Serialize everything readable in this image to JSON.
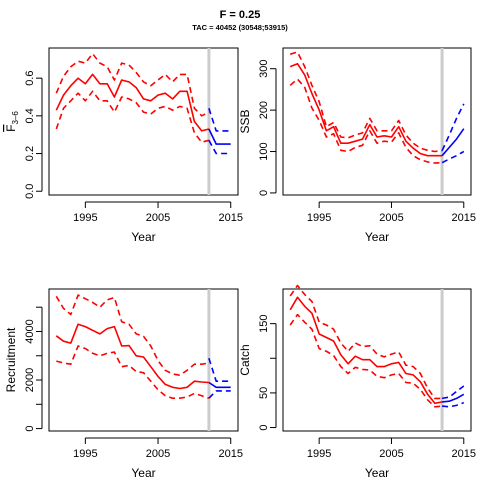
{
  "title": "F = 0.25",
  "subtitle": "TAC = 40452 (30548;53915)",
  "colors": {
    "historic": "#ff0000",
    "projection": "#0000ff",
    "marker": "#cccccc",
    "axis": "#000000"
  },
  "chart_data": [
    {
      "type": "line",
      "ylabel": "F̅3–6",
      "ylabel_parts": {
        "base": "F",
        "sub": "3–6"
      },
      "xlabel": "Year",
      "xlim": [
        1990,
        2016
      ],
      "ylim": [
        -0.02,
        0.76
      ],
      "xticks": [
        1995,
        2005,
        2015
      ],
      "yticks": [
        0.0,
        0.2,
        0.4,
        0.6
      ],
      "ytick_labels": [
        "0.0",
        "0.2",
        "0.4",
        "0.6"
      ],
      "marker_year": 2012,
      "historic": {
        "x": [
          1991,
          1992,
          1993,
          1994,
          1995,
          1996,
          1997,
          1998,
          1999,
          2000,
          2001,
          2002,
          2003,
          2004,
          2005,
          2006,
          2007,
          2008,
          2009,
          2010,
          2011,
          2012
        ],
        "mid": [
          0.43,
          0.51,
          0.56,
          0.6,
          0.57,
          0.62,
          0.57,
          0.57,
          0.5,
          0.59,
          0.58,
          0.55,
          0.49,
          0.48,
          0.51,
          0.52,
          0.49,
          0.53,
          0.53,
          0.37,
          0.32,
          0.33
        ],
        "upper": [
          0.52,
          0.61,
          0.66,
          0.69,
          0.68,
          0.73,
          0.68,
          0.66,
          0.59,
          0.68,
          0.67,
          0.63,
          0.58,
          0.56,
          0.59,
          0.62,
          0.58,
          0.62,
          0.62,
          0.44,
          0.4,
          0.42
        ],
        "lower": [
          0.33,
          0.44,
          0.48,
          0.52,
          0.48,
          0.53,
          0.48,
          0.48,
          0.42,
          0.5,
          0.49,
          0.47,
          0.42,
          0.41,
          0.44,
          0.45,
          0.43,
          0.45,
          0.44,
          0.31,
          0.26,
          0.27
        ]
      },
      "projection": {
        "x": [
          2012,
          2013,
          2014,
          2015
        ],
        "mid": [
          0.33,
          0.25,
          0.25,
          0.25
        ],
        "upper": [
          0.44,
          0.32,
          0.32,
          0.32
        ],
        "lower": [
          0.27,
          0.2,
          0.2,
          0.2
        ]
      }
    },
    {
      "type": "line",
      "ylabel": "SSB",
      "xlabel": "Year",
      "xlim": [
        1990,
        2016
      ],
      "ylim": [
        -5,
        350
      ],
      "xticks": [
        1995,
        2005,
        2015
      ],
      "yticks": [
        0,
        100,
        200,
        300
      ],
      "ytick_labels": [
        "0",
        "100",
        "200",
        "300"
      ],
      "marker_year": 2012,
      "historic": {
        "x": [
          1991,
          1992,
          1993,
          1994,
          1995,
          1996,
          1997,
          1998,
          1999,
          2000,
          2001,
          2002,
          2003,
          2004,
          2005,
          2006,
          2007,
          2008,
          2009,
          2010,
          2011,
          2012
        ],
        "mid": [
          305,
          312,
          285,
          240,
          200,
          150,
          160,
          120,
          120,
          125,
          130,
          165,
          135,
          138,
          135,
          160,
          125,
          108,
          95,
          90,
          90,
          90
        ],
        "upper": [
          335,
          340,
          305,
          260,
          220,
          160,
          170,
          135,
          133,
          140,
          145,
          180,
          150,
          150,
          150,
          175,
          140,
          120,
          108,
          103,
          100,
          102
        ],
        "lower": [
          260,
          275,
          255,
          205,
          175,
          135,
          143,
          103,
          100,
          110,
          115,
          150,
          120,
          125,
          123,
          145,
          110,
          90,
          80,
          75,
          72,
          73
        ]
      },
      "projection": {
        "x": [
          2012,
          2013,
          2014,
          2015
        ],
        "mid": [
          90,
          110,
          130,
          155
        ],
        "upper": [
          102,
          140,
          180,
          215
        ],
        "lower": [
          73,
          82,
          90,
          100
        ]
      }
    },
    {
      "type": "line",
      "ylabel": "Recruitment",
      "xlabel": "Year",
      "xlim": [
        1990,
        2016
      ],
      "ylim": [
        -100,
        5750
      ],
      "xticks": [
        1995,
        2005,
        2015
      ],
      "yticks": [
        0,
        1000,
        2000,
        3000,
        4000,
        5000
      ],
      "ytick_labels": [
        "0",
        "",
        "2000",
        "",
        "4000",
        ""
      ],
      "marker_year": 2012,
      "historic": {
        "x": [
          1991,
          1992,
          1993,
          1994,
          1995,
          1996,
          1997,
          1998,
          1999,
          2000,
          2001,
          2002,
          2003,
          2004,
          2005,
          2006,
          2007,
          2008,
          2009,
          2010,
          2011,
          2012
        ],
        "mid": [
          3820,
          3600,
          3520,
          4300,
          4200,
          4050,
          3900,
          4120,
          4200,
          3400,
          3420,
          3000,
          2950,
          2550,
          2150,
          1820,
          1700,
          1650,
          1700,
          1950,
          1920,
          1900
        ],
        "upper": [
          5450,
          4950,
          4700,
          5500,
          5350,
          5200,
          5000,
          5300,
          5400,
          4400,
          4300,
          3900,
          3800,
          3400,
          2800,
          2400,
          2250,
          2200,
          2400,
          2650,
          2650,
          2700
        ],
        "lower": [
          2780,
          2700,
          2650,
          3400,
          3300,
          3100,
          3000,
          3100,
          3150,
          2550,
          2600,
          2350,
          2300,
          1950,
          1600,
          1350,
          1250,
          1250,
          1300,
          1450,
          1350,
          1250
        ]
      },
      "projection": {
        "x": [
          2012,
          2013,
          2014,
          2015
        ],
        "mid": [
          1900,
          1700,
          1700,
          1700
        ],
        "upper": [
          2900,
          1950,
          1950,
          1950
        ],
        "lower": [
          1250,
          1550,
          1550,
          1550
        ]
      }
    },
    {
      "type": "line",
      "ylabel": "Catch",
      "xlabel": "Year",
      "xlim": [
        1990,
        2016
      ],
      "ylim": [
        -5,
        200
      ],
      "xticks": [
        1995,
        2005,
        2015
      ],
      "yticks": [
        0,
        50,
        100,
        150
      ],
      "ytick_labels": [
        "0",
        "50",
        "",
        "150"
      ],
      "marker_year": 2012,
      "historic": {
        "x": [
          1991,
          1992,
          1993,
          1994,
          1995,
          1996,
          1997,
          1998,
          1999,
          2000,
          2001,
          2002,
          2003,
          2004,
          2005,
          2006,
          2007,
          2008,
          2009,
          2010,
          2011,
          2012
        ],
        "mid": [
          170,
          188,
          175,
          165,
          135,
          130,
          125,
          105,
          92,
          103,
          98,
          98,
          88,
          88,
          92,
          94,
          78,
          76,
          66,
          48,
          35,
          37
        ],
        "upper": [
          190,
          205,
          192,
          182,
          152,
          148,
          142,
          122,
          110,
          122,
          117,
          118,
          106,
          102,
          106,
          109,
          90,
          88,
          78,
          57,
          42,
          42
        ],
        "lower": [
          148,
          163,
          152,
          142,
          114,
          110,
          104,
          88,
          78,
          87,
          84,
          83,
          74,
          72,
          76,
          78,
          65,
          64,
          55,
          40,
          30,
          31
        ]
      },
      "projection": {
        "x": [
          2012,
          2013,
          2014,
          2015
        ],
        "mid": [
          37,
          38,
          42,
          48
        ],
        "upper": [
          42,
          44,
          52,
          60
        ],
        "lower": [
          31,
          30,
          32,
          36
        ]
      }
    }
  ]
}
